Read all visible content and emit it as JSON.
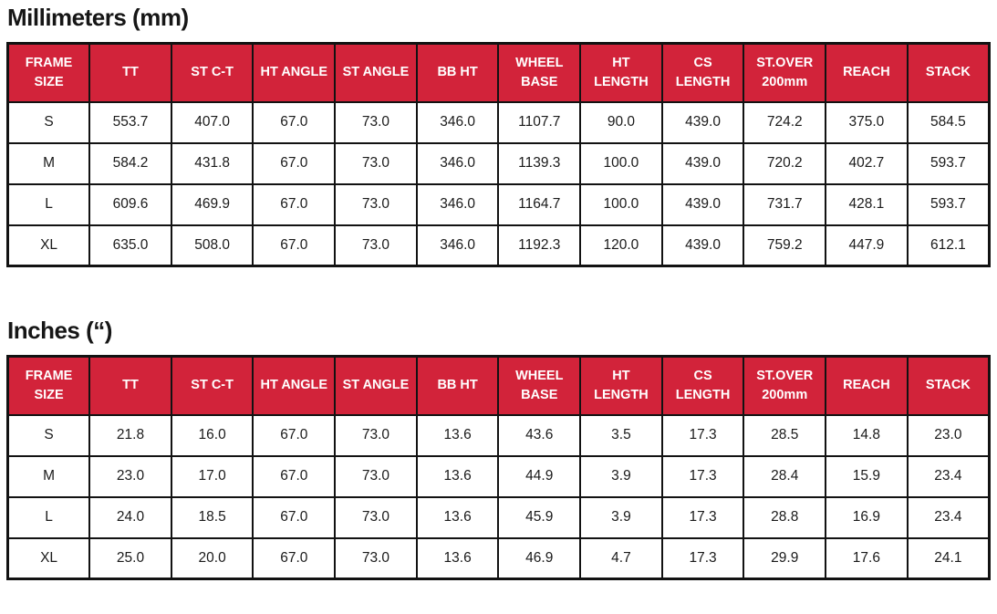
{
  "accent_color": "#d2233a",
  "tables": [
    {
      "title": "Millimeters (mm)",
      "headers": [
        "FRAME SIZE",
        "TT",
        "ST C-T",
        "HT ANGLE",
        "ST ANGLE",
        "BB HT",
        "WHEEL BASE",
        "HT LENGTH",
        "CS LENGTH",
        "ST.OVER 200mm",
        "REACH",
        "STACK"
      ],
      "rows": [
        [
          "S",
          "553.7",
          "407.0",
          "67.0",
          "73.0",
          "346.0",
          "1107.7",
          "90.0",
          "439.0",
          "724.2",
          "375.0",
          "584.5"
        ],
        [
          "M",
          "584.2",
          "431.8",
          "67.0",
          "73.0",
          "346.0",
          "1139.3",
          "100.0",
          "439.0",
          "720.2",
          "402.7",
          "593.7"
        ],
        [
          "L",
          "609.6",
          "469.9",
          "67.0",
          "73.0",
          "346.0",
          "1164.7",
          "100.0",
          "439.0",
          "731.7",
          "428.1",
          "593.7"
        ],
        [
          "XL",
          "635.0",
          "508.0",
          "67.0",
          "73.0",
          "346.0",
          "1192.3",
          "120.0",
          "439.0",
          "759.2",
          "447.9",
          "612.1"
        ]
      ]
    },
    {
      "title": "Inches (“)",
      "headers": [
        "FRAME SIZE",
        "TT",
        "ST C-T",
        "HT ANGLE",
        "ST ANGLE",
        "BB HT",
        "WHEEL BASE",
        "HT LENGTH",
        "CS LENGTH",
        "ST.OVER 200mm",
        "REACH",
        "STACK"
      ],
      "rows": [
        [
          "S",
          "21.8",
          "16.0",
          "67.0",
          "73.0",
          "13.6",
          "43.6",
          "3.5",
          "17.3",
          "28.5",
          "14.8",
          "23.0"
        ],
        [
          "M",
          "23.0",
          "17.0",
          "67.0",
          "73.0",
          "13.6",
          "44.9",
          "3.9",
          "17.3",
          "28.4",
          "15.9",
          "23.4"
        ],
        [
          "L",
          "24.0",
          "18.5",
          "67.0",
          "73.0",
          "13.6",
          "45.9",
          "3.9",
          "17.3",
          "28.8",
          "16.9",
          "23.4"
        ],
        [
          "XL",
          "25.0",
          "20.0",
          "67.0",
          "73.0",
          "13.6",
          "46.9",
          "4.7",
          "17.3",
          "29.9",
          "17.6",
          "24.1"
        ]
      ]
    }
  ]
}
